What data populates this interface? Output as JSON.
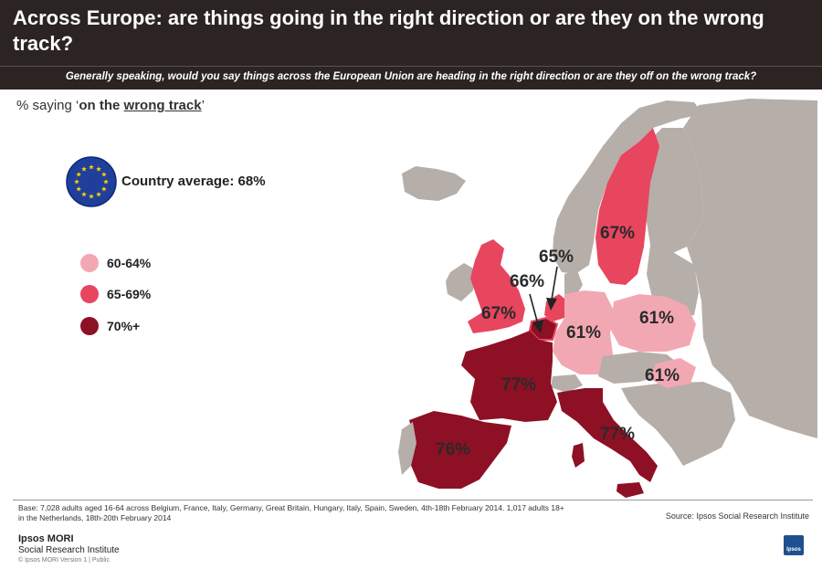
{
  "header": {
    "title": "Across Europe: are things going in the right direction or are they on the wrong track?",
    "question": "Generally speaking, would you say things across the European Union are heading in the right direction or are they off on the wrong track?"
  },
  "measure": {
    "prefix": "% saying ‘",
    "bold_text": "on the ",
    "underlined": "wrong track",
    "suffix": "’"
  },
  "average": {
    "label": "Country average: 68%"
  },
  "legend": [
    {
      "label": "60-64%",
      "color": "#f2a8b3"
    },
    {
      "label": "65-69%",
      "color": "#e8455f"
    },
    {
      "label": "70%+",
      "color": "#8e1025"
    }
  ],
  "countries": [
    {
      "name": "Sweden",
      "label": "67%",
      "value": 67
    },
    {
      "name": "Great Britain",
      "label": "67%",
      "value": 67
    },
    {
      "name": "Belgium",
      "label": "66%",
      "value": 66
    },
    {
      "name": "Netherlands",
      "label": "65%",
      "value": 65
    },
    {
      "name": "Germany",
      "label": "61%",
      "value": 61
    },
    {
      "name": "Poland",
      "label": "61%",
      "value": 61
    },
    {
      "name": "Hungary",
      "label": "61%",
      "value": 61
    },
    {
      "name": "France",
      "label": "77%",
      "value": 77
    },
    {
      "name": "Italy",
      "label": "77%",
      "value": 77
    },
    {
      "name": "Spain",
      "label": "76%",
      "value": 76
    }
  ],
  "colors": {
    "header_bg": "#2b2422",
    "land_gray": "#b6aea8",
    "light": "#f2a8b3",
    "mid": "#e8455f",
    "dark": "#8e1025",
    "eu_blue": "#1f3f9a",
    "eu_star": "#ffd200"
  },
  "footer": {
    "base": "Base: 7,028 adults aged 16-64 across Belgium, France, Italy, Germany, Great Britain, Hungary, Italy, Spain, Sweden, 4th-18th February 2014. 1,017 adults 18+ in the Netherlands, 18th-20th February 2014",
    "source": "Source: Ipsos Social Research Institute",
    "logo_line1": "Ipsos MORI",
    "logo_line2": "Social Research Institute",
    "copyright": "© Ipsos MORI    Version 1 | Public",
    "logo_badge": "Ipsos"
  }
}
